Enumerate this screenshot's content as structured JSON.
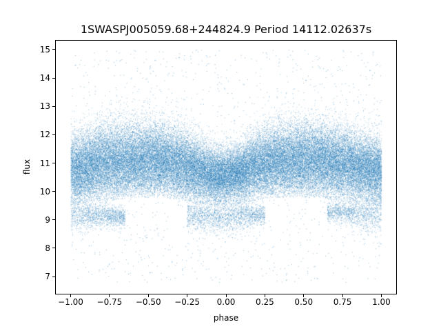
{
  "chart_data": {
    "type": "scatter",
    "title": "1SWASPJ005059.68+244824.9 Period 14112.02637s",
    "xlabel": "phase",
    "ylabel": "flux",
    "xlim": [
      -1.1,
      1.1
    ],
    "ylim": [
      6.37,
      15.34
    ],
    "xticks": [
      -1.0,
      -0.75,
      -0.5,
      -0.25,
      0.0,
      0.25,
      0.5,
      0.75,
      1.0
    ],
    "xtick_labels": [
      "−1.00",
      "−0.75",
      "−0.50",
      "−0.25",
      "0.00",
      "0.25",
      "0.50",
      "0.75",
      "1.00"
    ],
    "yticks": [
      7,
      8,
      9,
      10,
      11,
      12,
      13,
      14,
      15
    ],
    "ytick_labels": [
      "7",
      "8",
      "9",
      "10",
      "11",
      "12",
      "13",
      "14",
      "15"
    ],
    "grid": false,
    "color": "#1f77b4",
    "density_by_phase": {
      "columns": [
        "phase",
        "band_low",
        "band_high",
        "dip_low",
        "dip_high"
      ],
      "rows": [
        [
          -1.0,
          9.8,
          12.3,
          8.7,
          9.8
        ],
        [
          -0.9,
          9.9,
          12.5,
          8.7,
          9.6
        ],
        [
          -0.8,
          10.0,
          12.8,
          8.8,
          9.6
        ],
        [
          -0.7,
          10.0,
          12.8,
          8.8,
          9.4
        ],
        [
          -0.6,
          10.1,
          12.8,
          null,
          null
        ],
        [
          -0.5,
          10.1,
          12.8,
          null,
          null
        ],
        [
          -0.4,
          10.1,
          12.7,
          null,
          null
        ],
        [
          -0.3,
          10.0,
          12.6,
          null,
          null
        ],
        [
          -0.2,
          9.9,
          12.3,
          8.7,
          9.6
        ],
        [
          -0.1,
          9.8,
          11.9,
          8.6,
          9.6
        ],
        [
          0.0,
          9.8,
          11.8,
          8.6,
          9.6
        ],
        [
          0.1,
          9.9,
          12.0,
          8.7,
          9.6
        ],
        [
          0.2,
          10.0,
          12.5,
          8.9,
          9.5
        ],
        [
          0.3,
          10.1,
          12.7,
          null,
          null
        ],
        [
          0.4,
          10.1,
          12.8,
          null,
          null
        ],
        [
          0.5,
          10.1,
          12.8,
          null,
          null
        ],
        [
          0.6,
          10.1,
          12.8,
          null,
          null
        ],
        [
          0.7,
          10.0,
          12.7,
          9.0,
          9.6
        ],
        [
          0.8,
          10.0,
          12.5,
          8.8,
          9.7
        ],
        [
          0.9,
          9.9,
          12.3,
          8.7,
          9.8
        ],
        [
          1.0,
          9.8,
          12.2,
          8.7,
          9.8
        ]
      ],
      "outlier_range": [
        6.8,
        15.0
      ]
    }
  }
}
